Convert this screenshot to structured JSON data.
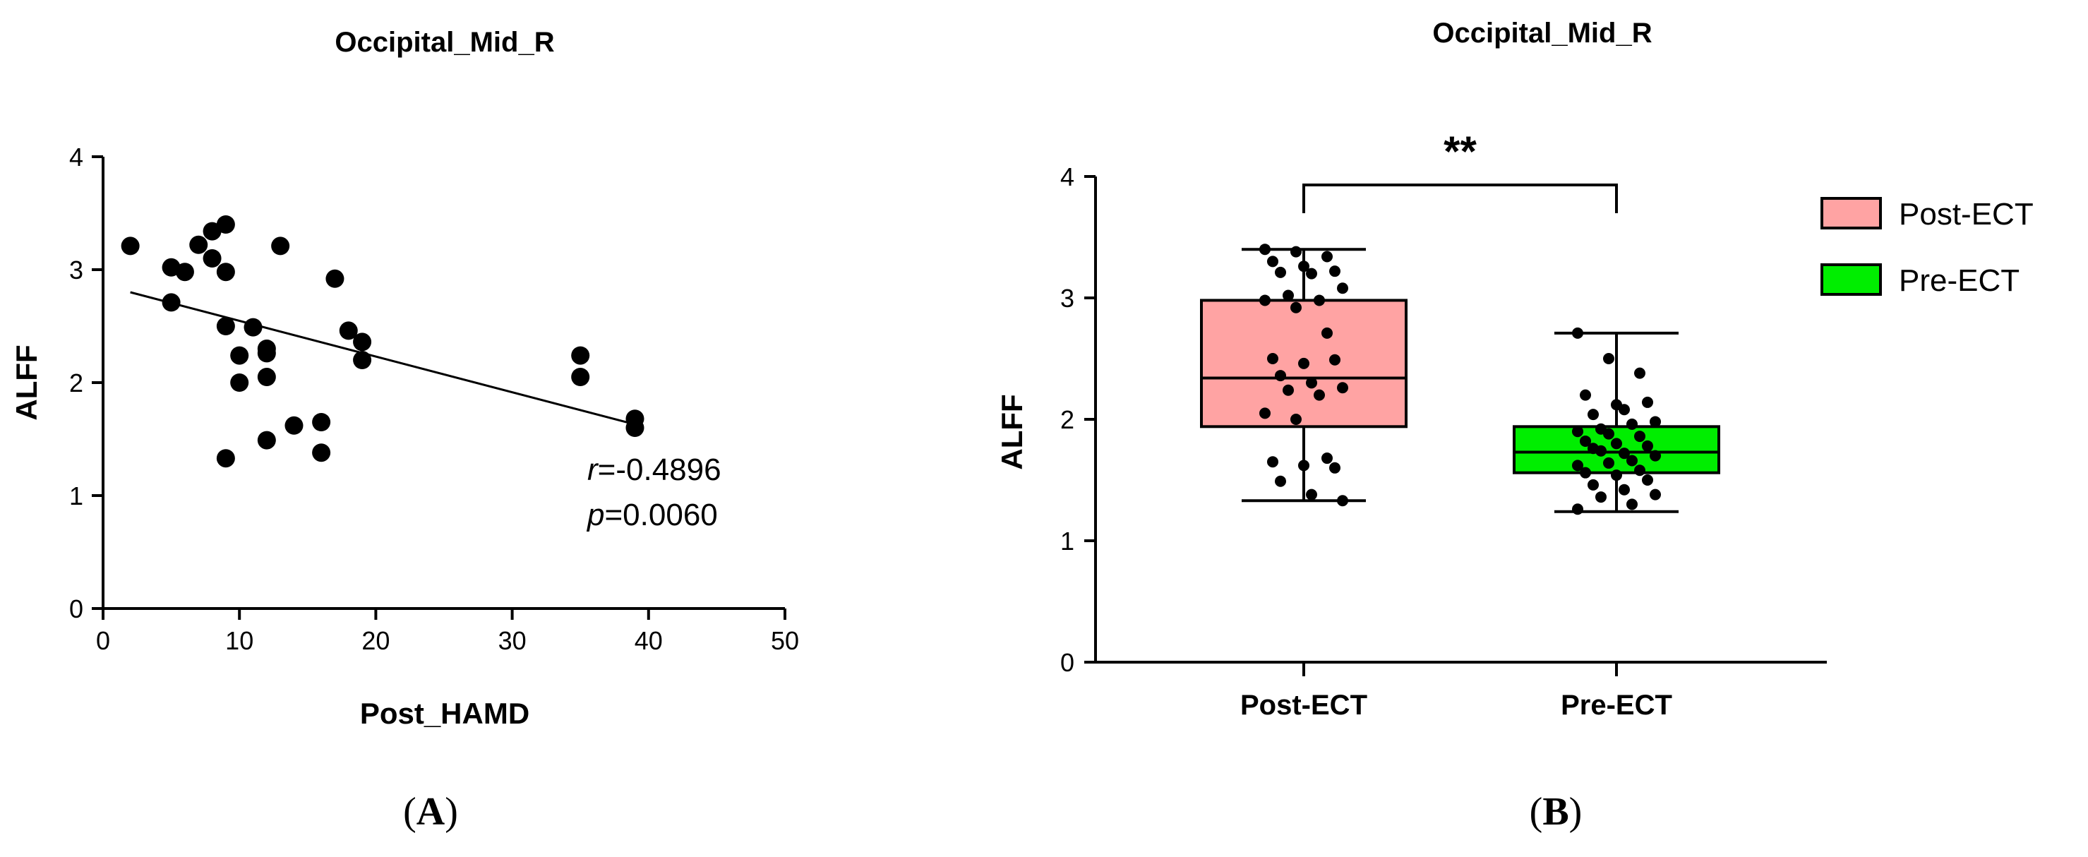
{
  "chart_data": [
    {
      "type": "scatter",
      "title": "Occipital_Mid_R",
      "xlabel": "Post_HAMD",
      "ylabel": "ALFF",
      "xlim": [
        0,
        50
      ],
      "ylim": [
        0,
        4
      ],
      "xticks": [
        0,
        10,
        20,
        30,
        40,
        50
      ],
      "yticks": [
        0,
        1,
        2,
        3,
        4
      ],
      "xtick_labels": [
        "0",
        "10",
        "20",
        "30",
        "40",
        "50"
      ],
      "ytick_labels": [
        "0",
        "1",
        "2",
        "3",
        "4"
      ],
      "points": [
        [
          2,
          3.21
        ],
        [
          5,
          3.02
        ],
        [
          5,
          2.71
        ],
        [
          6,
          2.98
        ],
        [
          7,
          3.22
        ],
        [
          8,
          3.34
        ],
        [
          8,
          3.1
        ],
        [
          9,
          3.4
        ],
        [
          9,
          2.98
        ],
        [
          9,
          2.5
        ],
        [
          9,
          1.33
        ],
        [
          10,
          2.24
        ],
        [
          10,
          2.0
        ],
        [
          11,
          2.49
        ],
        [
          12,
          2.3
        ],
        [
          12,
          2.26
        ],
        [
          12,
          2.05
        ],
        [
          12,
          1.49
        ],
        [
          13,
          3.21
        ],
        [
          14,
          1.62
        ],
        [
          16,
          1.65
        ],
        [
          16,
          1.38
        ],
        [
          17,
          2.92
        ],
        [
          18,
          2.46
        ],
        [
          19,
          2.36
        ],
        [
          19,
          2.2
        ],
        [
          35,
          2.24
        ],
        [
          35,
          2.05
        ],
        [
          39,
          1.68
        ],
        [
          39,
          1.6
        ]
      ],
      "fit_line": {
        "x": [
          2,
          39
        ],
        "y": [
          2.8,
          1.63
        ]
      },
      "stat_r_label": "r",
      "stat_r_value": "=-0.4896",
      "stat_p_label": "p",
      "stat_p_value": "=0.0060",
      "panel_open": "(",
      "panel_letter": "A",
      "panel_close": ")"
    },
    {
      "type": "box",
      "title": "Occipital_Mid_R",
      "xlabel": "",
      "ylabel": "ALFF",
      "ylim": [
        0,
        4
      ],
      "yticks": [
        0,
        1,
        2,
        3,
        4
      ],
      "ytick_labels": [
        "0",
        "1",
        "2",
        "3",
        "4"
      ],
      "categories": [
        "Post-ECT",
        "Pre-ECT"
      ],
      "series": [
        {
          "name": "Post-ECT",
          "color": "#ffa3a3",
          "min": 1.33,
          "q1": 1.94,
          "median": 2.34,
          "q3": 2.98,
          "max": 3.4,
          "points": [
            3.4,
            3.38,
            3.34,
            3.3,
            3.26,
            3.22,
            3.21,
            3.2,
            3.08,
            3.02,
            2.98,
            2.98,
            2.92,
            2.71,
            2.5,
            2.46,
            2.49,
            2.36,
            2.3,
            2.26,
            2.24,
            2.2,
            2.05,
            2.0,
            1.68,
            1.65,
            1.62,
            1.6,
            1.49,
            1.38,
            1.33
          ]
        },
        {
          "name": "Pre-ECT",
          "color": "#00ee00",
          "min": 1.24,
          "q1": 1.56,
          "median": 1.73,
          "q3": 1.94,
          "max": 2.71,
          "points": [
            2.71,
            2.5,
            2.38,
            2.2,
            2.12,
            2.14,
            2.04,
            2.08,
            1.98,
            1.92,
            1.96,
            1.9,
            1.88,
            1.86,
            1.82,
            1.8,
            1.78,
            1.76,
            1.72,
            1.7,
            1.74,
            1.66,
            1.62,
            1.64,
            1.58,
            1.56,
            1.54,
            1.5,
            1.46,
            1.42,
            1.38,
            1.36,
            1.3,
            1.26
          ]
        }
      ],
      "significance": "**",
      "legend_position": "right",
      "panel_open": "(",
      "panel_letter": "B",
      "panel_close": ")"
    }
  ]
}
